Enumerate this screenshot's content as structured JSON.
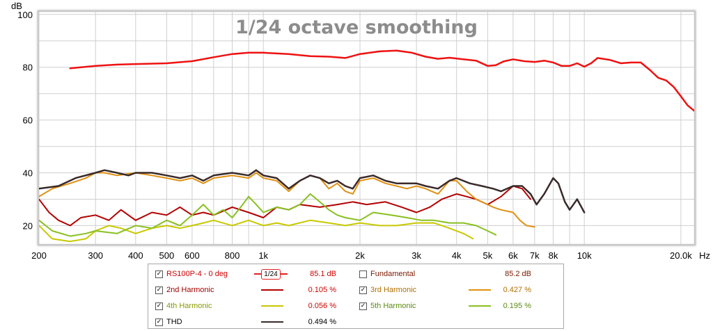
{
  "chart_data": {
    "type": "line",
    "title": "1/24 octave smoothing",
    "ylabel": "dB",
    "xunit": "Hz",
    "xscale": "log",
    "xlim": [
      200,
      22000
    ],
    "ylim": [
      13,
      101
    ],
    "y_ticks": [
      "100",
      "80",
      "60",
      "40",
      "20"
    ],
    "y_tick_values": [
      100,
      80,
      60,
      40,
      20
    ],
    "x_ticks": [
      "200",
      "300",
      "400",
      "500",
      "600",
      "800",
      "1k",
      "2k",
      "3k",
      "4k",
      "5k",
      "6k",
      "7k",
      "8k",
      "10k",
      "20.0k"
    ],
    "x_tick_values": [
      200,
      300,
      400,
      500,
      600,
      800,
      1000,
      2000,
      3000,
      4000,
      5000,
      6000,
      7000,
      8000,
      10000,
      20000
    ],
    "grid": true,
    "series": [
      {
        "name": "RS100P-4 - 0 deg",
        "color": "#ee1111",
        "width": 2.5,
        "points": [
          [
            250,
            79.6
          ],
          [
            300,
            80.5
          ],
          [
            350,
            81.0
          ],
          [
            400,
            81.2
          ],
          [
            500,
            81.5
          ],
          [
            600,
            82.3
          ],
          [
            700,
            83.8
          ],
          [
            800,
            85.0
          ],
          [
            900,
            85.5
          ],
          [
            1000,
            85.5
          ],
          [
            1200,
            85.0
          ],
          [
            1400,
            84.2
          ],
          [
            1600,
            84.0
          ],
          [
            1800,
            83.5
          ],
          [
            2000,
            85.0
          ],
          [
            2300,
            86.0
          ],
          [
            2600,
            86.3
          ],
          [
            2900,
            85.5
          ],
          [
            3200,
            84.0
          ],
          [
            3500,
            83.2
          ],
          [
            3800,
            83.6
          ],
          [
            4200,
            83.0
          ],
          [
            4600,
            82.5
          ],
          [
            5000,
            80.5
          ],
          [
            5300,
            80.8
          ],
          [
            5600,
            82.2
          ],
          [
            6000,
            83.0
          ],
          [
            6500,
            82.3
          ],
          [
            7000,
            82.0
          ],
          [
            7500,
            82.5
          ],
          [
            8000,
            81.8
          ],
          [
            8500,
            80.5
          ],
          [
            9000,
            80.5
          ],
          [
            9500,
            81.5
          ],
          [
            10000,
            80.2
          ],
          [
            10500,
            81.5
          ],
          [
            11000,
            83.5
          ],
          [
            12000,
            82.8
          ],
          [
            13000,
            81.5
          ],
          [
            14000,
            81.8
          ],
          [
            15000,
            81.8
          ],
          [
            16000,
            79.0
          ],
          [
            17000,
            76.0
          ],
          [
            18000,
            75.0
          ],
          [
            19000,
            72.5
          ],
          [
            20000,
            69.0
          ],
          [
            21000,
            65.5
          ],
          [
            22000,
            63.5
          ]
        ]
      },
      {
        "name": "2nd Harmonic",
        "color": "#b30000",
        "width": 2,
        "points": [
          [
            200,
            30
          ],
          [
            215,
            25
          ],
          [
            230,
            22
          ],
          [
            250,
            20
          ],
          [
            270,
            23
          ],
          [
            300,
            24
          ],
          [
            330,
            22
          ],
          [
            360,
            26
          ],
          [
            400,
            22
          ],
          [
            450,
            25
          ],
          [
            500,
            24
          ],
          [
            550,
            27
          ],
          [
            600,
            24
          ],
          [
            650,
            25
          ],
          [
            700,
            24
          ],
          [
            800,
            27
          ],
          [
            900,
            25
          ],
          [
            1000,
            23
          ],
          [
            1100,
            27
          ],
          [
            1200,
            26
          ],
          [
            1300,
            28
          ],
          [
            1500,
            27
          ],
          [
            1700,
            28
          ],
          [
            1900,
            29
          ],
          [
            2100,
            28
          ],
          [
            2400,
            29
          ],
          [
            2700,
            27
          ],
          [
            3000,
            25
          ],
          [
            3300,
            27
          ],
          [
            3600,
            30
          ],
          [
            4000,
            32
          ],
          [
            4300,
            31
          ],
          [
            4600,
            30
          ],
          [
            5000,
            28
          ],
          [
            5500,
            31
          ],
          [
            6000,
            35
          ],
          [
            6400,
            34
          ],
          [
            6800,
            30
          ]
        ]
      },
      {
        "name": "3rd Harmonic",
        "color": "#e09010",
        "width": 2,
        "points": [
          [
            200,
            31
          ],
          [
            220,
            34
          ],
          [
            250,
            36
          ],
          [
            280,
            38
          ],
          [
            300,
            40
          ],
          [
            320,
            40
          ],
          [
            350,
            39
          ],
          [
            400,
            40
          ],
          [
            450,
            39
          ],
          [
            500,
            38
          ],
          [
            550,
            37
          ],
          [
            600,
            38
          ],
          [
            650,
            36
          ],
          [
            700,
            38
          ],
          [
            800,
            39
          ],
          [
            900,
            38
          ],
          [
            950,
            40
          ],
          [
            1000,
            38
          ],
          [
            1100,
            37
          ],
          [
            1200,
            33
          ],
          [
            1300,
            37
          ],
          [
            1400,
            39
          ],
          [
            1500,
            38
          ],
          [
            1600,
            34
          ],
          [
            1700,
            36
          ],
          [
            1800,
            33
          ],
          [
            1900,
            32
          ],
          [
            2000,
            37
          ],
          [
            2200,
            38
          ],
          [
            2400,
            36
          ],
          [
            2600,
            35
          ],
          [
            2800,
            34
          ],
          [
            3000,
            35
          ],
          [
            3200,
            34
          ],
          [
            3500,
            32
          ],
          [
            3800,
            37
          ],
          [
            4000,
            37
          ],
          [
            4300,
            33
          ],
          [
            4600,
            30
          ],
          [
            5000,
            28
          ],
          [
            5200,
            27
          ],
          [
            5500,
            26
          ],
          [
            6000,
            25
          ],
          [
            6300,
            22
          ],
          [
            6600,
            20
          ],
          [
            7000,
            19.5
          ]
        ]
      },
      {
        "name": "4th Harmonic",
        "color": "#c8c800",
        "width": 2,
        "points": [
          [
            200,
            20
          ],
          [
            220,
            15
          ],
          [
            250,
            14
          ],
          [
            280,
            15
          ],
          [
            300,
            18
          ],
          [
            330,
            20
          ],
          [
            360,
            19
          ],
          [
            400,
            17
          ],
          [
            450,
            19
          ],
          [
            500,
            20
          ],
          [
            550,
            19
          ],
          [
            600,
            20
          ],
          [
            650,
            21
          ],
          [
            700,
            22
          ],
          [
            800,
            20
          ],
          [
            900,
            22
          ],
          [
            1000,
            20
          ],
          [
            1100,
            21
          ],
          [
            1200,
            20
          ],
          [
            1400,
            22
          ],
          [
            1600,
            21
          ],
          [
            1800,
            20
          ],
          [
            2000,
            21
          ],
          [
            2300,
            20
          ],
          [
            2600,
            20
          ],
          [
            3000,
            21
          ],
          [
            3400,
            21
          ],
          [
            3800,
            19
          ],
          [
            4200,
            17
          ],
          [
            4500,
            15
          ]
        ]
      },
      {
        "name": "5th Harmonic",
        "color": "#88c020",
        "width": 2,
        "points": [
          [
            200,
            22
          ],
          [
            220,
            18
          ],
          [
            250,
            16
          ],
          [
            280,
            17
          ],
          [
            300,
            18
          ],
          [
            350,
            17
          ],
          [
            400,
            20
          ],
          [
            450,
            19
          ],
          [
            500,
            22
          ],
          [
            550,
            20
          ],
          [
            600,
            24
          ],
          [
            650,
            28
          ],
          [
            700,
            24
          ],
          [
            750,
            26
          ],
          [
            800,
            23
          ],
          [
            850,
            27
          ],
          [
            900,
            31
          ],
          [
            950,
            28
          ],
          [
            1000,
            25
          ],
          [
            1100,
            27
          ],
          [
            1200,
            26
          ],
          [
            1300,
            28
          ],
          [
            1400,
            32
          ],
          [
            1500,
            29
          ],
          [
            1600,
            26
          ],
          [
            1700,
            24
          ],
          [
            1800,
            23
          ],
          [
            2000,
            22
          ],
          [
            2200,
            25
          ],
          [
            2500,
            24
          ],
          [
            2800,
            23
          ],
          [
            3100,
            22
          ],
          [
            3400,
            22
          ],
          [
            3800,
            21
          ],
          [
            4200,
            21
          ],
          [
            4600,
            20
          ],
          [
            5000,
            18
          ],
          [
            5300,
            16.5
          ]
        ]
      },
      {
        "name": "THD",
        "color": "#3a2a2a",
        "width": 2.5,
        "points": [
          [
            200,
            34
          ],
          [
            230,
            35
          ],
          [
            260,
            38
          ],
          [
            300,
            40
          ],
          [
            320,
            41
          ],
          [
            350,
            40
          ],
          [
            380,
            39
          ],
          [
            400,
            40
          ],
          [
            450,
            40
          ],
          [
            500,
            39
          ],
          [
            550,
            38
          ],
          [
            600,
            39
          ],
          [
            650,
            37
          ],
          [
            700,
            39
          ],
          [
            800,
            40
          ],
          [
            900,
            39
          ],
          [
            950,
            41
          ],
          [
            1000,
            39
          ],
          [
            1100,
            38
          ],
          [
            1200,
            34
          ],
          [
            1300,
            37
          ],
          [
            1400,
            39
          ],
          [
            1500,
            38
          ],
          [
            1600,
            36
          ],
          [
            1700,
            37
          ],
          [
            1800,
            35
          ],
          [
            1900,
            34
          ],
          [
            2000,
            38
          ],
          [
            2200,
            39
          ],
          [
            2400,
            37
          ],
          [
            2600,
            36
          ],
          [
            2800,
            36
          ],
          [
            3000,
            36
          ],
          [
            3200,
            35
          ],
          [
            3500,
            34
          ],
          [
            3800,
            37
          ],
          [
            4000,
            38
          ],
          [
            4400,
            36
          ],
          [
            4800,
            35
          ],
          [
            5200,
            34
          ],
          [
            5500,
            33
          ],
          [
            6000,
            35
          ],
          [
            6400,
            35
          ],
          [
            6800,
            32
          ],
          [
            7100,
            28
          ],
          [
            7500,
            32
          ],
          [
            8000,
            38
          ],
          [
            8300,
            36
          ],
          [
            8700,
            29
          ],
          [
            9000,
            26
          ],
          [
            9500,
            30
          ],
          [
            10000,
            25
          ]
        ]
      }
    ]
  },
  "legend": {
    "rows": [
      [
        {
          "name": "RS100P-4 - 0 deg",
          "checked": "✓",
          "value": "85.1 dB",
          "badge": "1/24"
        },
        {
          "name": "Fundamental",
          "checked": "",
          "value": "85.2 dB"
        }
      ],
      [
        {
          "name": "2nd Harmonic",
          "checked": "✓",
          "value": "0.105 %"
        },
        {
          "name": "3rd Harmonic",
          "checked": "✓",
          "value": "0.427 %"
        }
      ],
      [
        {
          "name": "4th Harmonic",
          "checked": "✓",
          "value": "0.056 %"
        },
        {
          "name": "5th Harmonic",
          "checked": "✓",
          "value": "0.195 %"
        }
      ],
      [
        {
          "name": "THD",
          "checked": "✓",
          "value": "0.494 %"
        }
      ]
    ],
    "colors": {
      "RS100P-4 - 0 deg": "#ee1111",
      "Fundamental": "#ee1111",
      "2nd Harmonic": "#b30000",
      "3rd Harmonic": "#e09010",
      "4th Harmonic": "#c8c800",
      "5th Harmonic": "#88c020",
      "THD": "#3a2a2a"
    },
    "text_colors": {
      "RS100P-4 - 0 deg": "#cc0000",
      "Fundamental": "#7a1a00",
      "2nd Harmonic": "#a00000",
      "3rd Harmonic": "#b07000",
      "4th Harmonic": "#8a9a00",
      "5th Harmonic": "#5a8a10",
      "THD": "#000000"
    }
  }
}
